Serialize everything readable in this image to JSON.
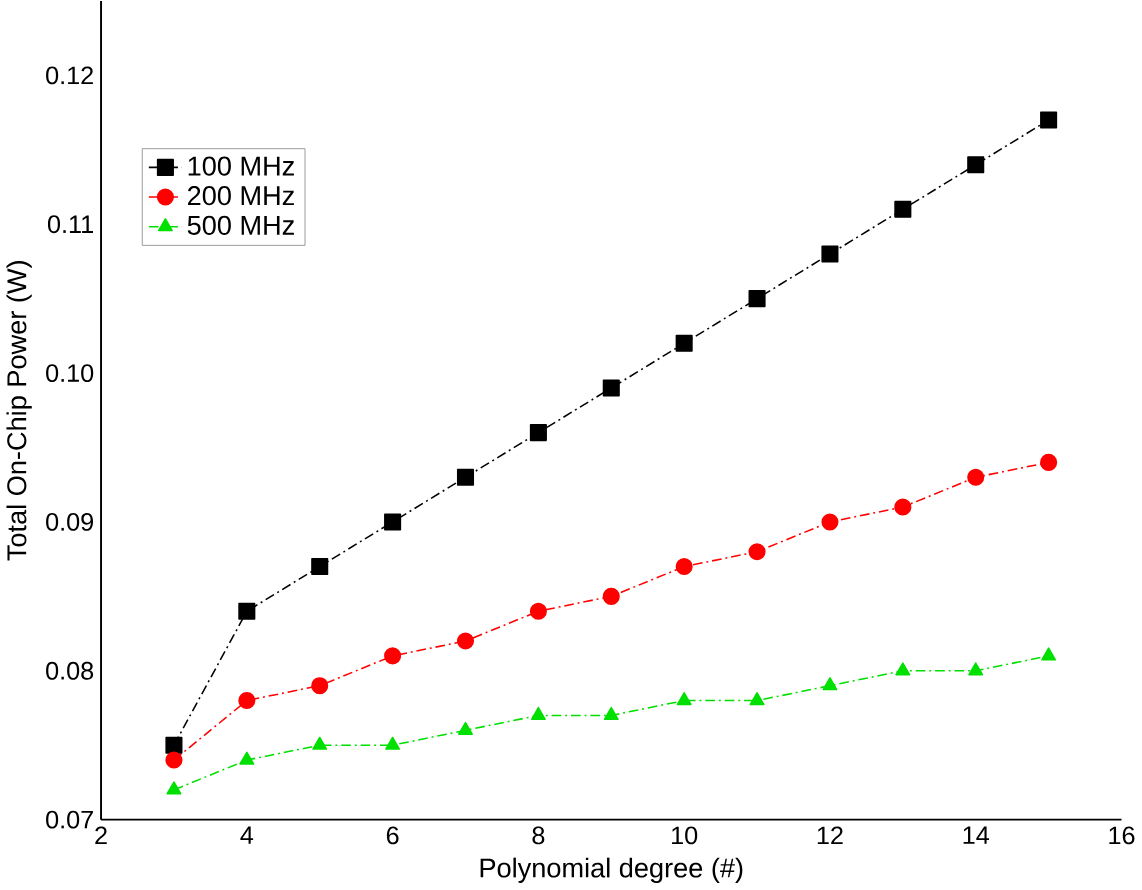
{
  "chart_data": {
    "type": "line",
    "xlabel": "Polynomial degree (#)",
    "ylabel": "Total On-Chip Power (W)",
    "x": [
      3,
      4,
      5,
      6,
      7,
      8,
      9,
      10,
      11,
      12,
      13,
      14,
      15
    ],
    "series": [
      {
        "name": "100 MHz",
        "color": "#000000",
        "marker": "square",
        "values": [
          0.075,
          0.084,
          0.087,
          0.09,
          0.093,
          0.096,
          0.099,
          0.102,
          0.105,
          0.108,
          0.111,
          0.114,
          0.117
        ]
      },
      {
        "name": "200 MHz",
        "color": "#ff0000",
        "marker": "circle",
        "values": [
          0.074,
          0.078,
          0.079,
          0.081,
          0.082,
          0.084,
          0.085,
          0.087,
          0.088,
          0.09,
          0.091,
          0.093,
          0.094
        ]
      },
      {
        "name": "500 MHz",
        "color": "#00e000",
        "marker": "triangle",
        "values": [
          0.072,
          0.074,
          0.075,
          0.075,
          0.076,
          0.077,
          0.077,
          0.078,
          0.078,
          0.079,
          0.08,
          0.08,
          0.081
        ]
      }
    ],
    "xlim": [
      2,
      16
    ],
    "xticks": [
      2,
      4,
      6,
      8,
      10,
      12,
      14,
      16
    ],
    "ylim": [
      0.07,
      0.125
    ],
    "yticks": [
      0.07,
      0.08,
      0.09,
      {
        "value": 0.1,
        "label": "0.10"
      },
      0.11,
      0.12
    ],
    "grid": false,
    "legend": "top left",
    "line_style": "dashed"
  }
}
